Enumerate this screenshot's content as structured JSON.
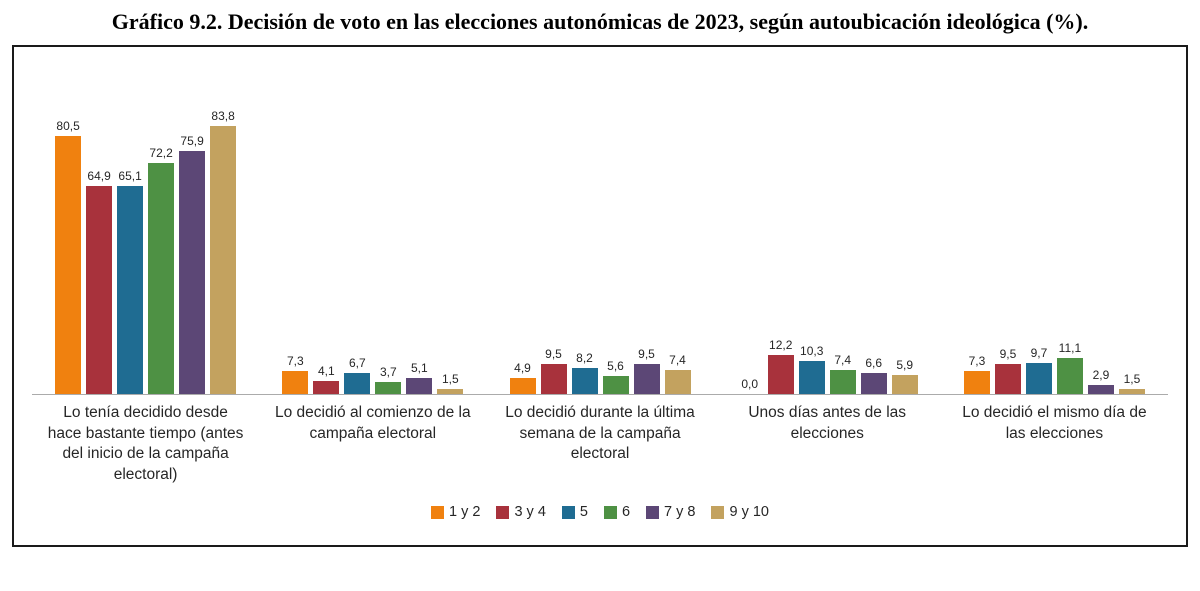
{
  "title": "Gráfico 9.2. Decisión de voto en las elecciones autonómicas de 2023, según autoubicación ideológica (%).",
  "chart_data": {
    "type": "bar",
    "title": "Gráfico 9.2. Decisión de voto en las elecciones autonómicas de 2023, según autoubicación ideológica (%).",
    "categories": [
      "Lo tenía decidido desde hace bastante tiempo (antes del inicio de la campaña electoral)",
      "Lo decidió al comienzo de la campaña electoral",
      "Lo decidió durante la última semana de la campaña electoral",
      "Unos días antes de las elecciones",
      "Lo decidió el mismo día de las elecciones"
    ],
    "series": [
      {
        "name": "1 y 2",
        "color": "#F0810F",
        "values": [
          80.5,
          7.3,
          4.9,
          0.0,
          7.3
        ]
      },
      {
        "name": "3 y 4",
        "color": "#A8323C",
        "values": [
          64.9,
          4.1,
          9.5,
          12.2,
          9.5
        ]
      },
      {
        "name": "5",
        "color": "#1F6C92",
        "values": [
          65.1,
          6.7,
          8.2,
          10.3,
          9.7
        ]
      },
      {
        "name": "6",
        "color": "#4E9144",
        "values": [
          72.2,
          3.7,
          5.6,
          7.4,
          11.1
        ]
      },
      {
        "name": "7 y 8",
        "color": "#5C4776",
        "values": [
          75.9,
          5.1,
          9.5,
          6.6,
          2.9
        ]
      },
      {
        "name": "9 y 10",
        "color": "#C3A25F",
        "values": [
          83.8,
          1.5,
          7.4,
          5.9,
          1.5
        ]
      }
    ],
    "ylim": [
      0,
      90
    ],
    "xlabel": "",
    "ylabel": "",
    "grid": false,
    "legend_position": "bottom",
    "value_format": "comma-decimal"
  }
}
